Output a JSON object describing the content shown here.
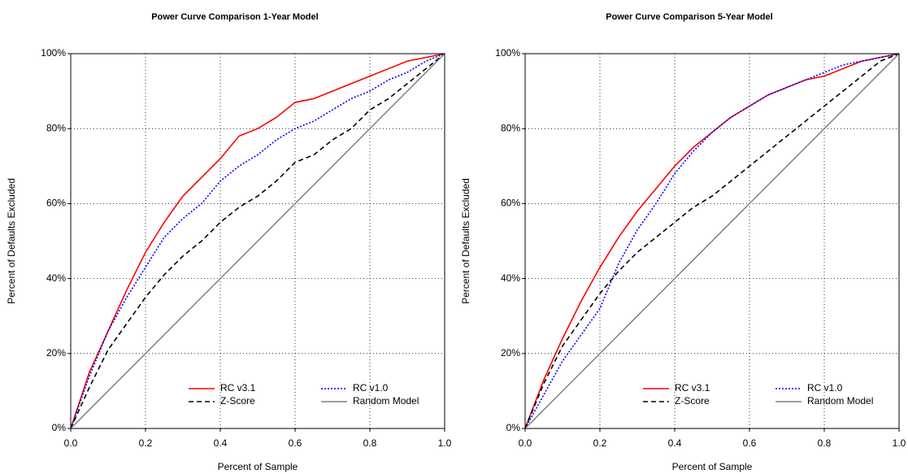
{
  "chart_data": [
    {
      "type": "line",
      "title": "Power Curve Comparison 1-Year Model",
      "x_label": "Percent of Sample",
      "y_label": "Percent of Defaults Excluded",
      "x": [
        0,
        0.05,
        0.1,
        0.15,
        0.2,
        0.25,
        0.3,
        0.35,
        0.4,
        0.45,
        0.5,
        0.55,
        0.6,
        0.65,
        0.7,
        0.75,
        0.8,
        0.85,
        0.9,
        0.95,
        1
      ],
      "series": [
        {
          "name": "RC v3.1",
          "color": "#ff0000",
          "dash": "solid",
          "values": [
            0,
            15,
            26,
            37,
            47,
            55,
            62,
            67,
            72,
            78,
            80,
            83,
            87,
            88,
            90,
            92,
            94,
            96,
            98,
            99,
            100
          ]
        },
        {
          "name": "RC v1.0",
          "color": "#0000ff",
          "dash": "dotted",
          "values": [
            0,
            14,
            26,
            35,
            43,
            51,
            56,
            60,
            66,
            70,
            73,
            77,
            80,
            82,
            85,
            88,
            90,
            93,
            95,
            98,
            100
          ]
        },
        {
          "name": "Z-Score",
          "color": "#000000",
          "dash": "dashed",
          "values": [
            0,
            11,
            21,
            28,
            35,
            41,
            46,
            50,
            55,
            59,
            62,
            66,
            71,
            73,
            77,
            80,
            85,
            88,
            92,
            96,
            100
          ]
        },
        {
          "name": "Random Model",
          "color": "#808080",
          "dash": "solid",
          "values": [
            0,
            5,
            10,
            15,
            20,
            25,
            30,
            35,
            40,
            45,
            50,
            55,
            60,
            65,
            70,
            75,
            80,
            85,
            90,
            95,
            100
          ]
        }
      ],
      "xlim": [
        0,
        1
      ],
      "ylim": [
        0,
        100
      ],
      "xticks": [
        {
          "value": 0,
          "label": "0.0"
        },
        0.2,
        0.4,
        0.6,
        0.8,
        {
          "value": 1,
          "label": "1.0"
        }
      ],
      "yticks": [
        {
          "value": 0,
          "label": "0%"
        },
        {
          "value": 20,
          "label": "20%"
        },
        {
          "value": 40,
          "label": "40%"
        },
        {
          "value": 60,
          "label": "60%"
        },
        {
          "value": 80,
          "label": "80%"
        },
        {
          "value": 100,
          "label": "100%"
        }
      ],
      "grid": true,
      "legend": "lower right"
    },
    {
      "type": "line",
      "title": "Power Curve Comparison 5-Year Model",
      "x_label": "Percent of Sample",
      "y_label": "Percent of Defaults Excluded",
      "x": [
        0,
        0.05,
        0.1,
        0.15,
        0.2,
        0.25,
        0.3,
        0.35,
        0.4,
        0.45,
        0.5,
        0.55,
        0.6,
        0.65,
        0.7,
        0.75,
        0.8,
        0.85,
        0.9,
        0.95,
        1
      ],
      "series": [
        {
          "name": "RC v3.1",
          "color": "#ff0000",
          "dash": "solid",
          "values": [
            0,
            13,
            24,
            34,
            43,
            51,
            58,
            64,
            70,
            75,
            79,
            83,
            86,
            89,
            91,
            93,
            94,
            96,
            98,
            99,
            100
          ]
        },
        {
          "name": "RC v1.0",
          "color": "#0000ff",
          "dash": "dotted",
          "values": [
            0,
            9,
            18,
            25,
            32,
            44,
            53,
            60,
            68,
            74,
            79,
            83,
            86,
            89,
            91,
            93,
            95,
            97,
            98,
            99,
            100
          ]
        },
        {
          "name": "Z-Score",
          "color": "#000000",
          "dash": "dashed",
          "values": [
            0,
            12,
            22,
            29,
            36,
            42,
            47,
            51,
            55,
            59,
            62,
            66,
            70,
            74,
            78,
            82,
            86,
            90,
            94,
            98,
            100
          ]
        },
        {
          "name": "Random Model",
          "color": "#808080",
          "dash": "solid",
          "values": [
            0,
            5,
            10,
            15,
            20,
            25,
            30,
            35,
            40,
            45,
            50,
            55,
            60,
            65,
            70,
            75,
            80,
            85,
            90,
            95,
            100
          ]
        }
      ],
      "xlim": [
        0,
        1
      ],
      "ylim": [
        0,
        100
      ],
      "xticks": [
        {
          "value": 0,
          "label": "0.0"
        },
        0.2,
        0.4,
        0.6,
        0.8,
        {
          "value": 1,
          "label": "1.0"
        }
      ],
      "yticks": [
        {
          "value": 0,
          "label": "0%"
        },
        {
          "value": 20,
          "label": "20%"
        },
        {
          "value": 40,
          "label": "40%"
        },
        {
          "value": 60,
          "label": "60%"
        },
        {
          "value": 80,
          "label": "80%"
        },
        {
          "value": 100,
          "label": "100%"
        }
      ],
      "grid": true,
      "legend": "lower right"
    }
  ]
}
